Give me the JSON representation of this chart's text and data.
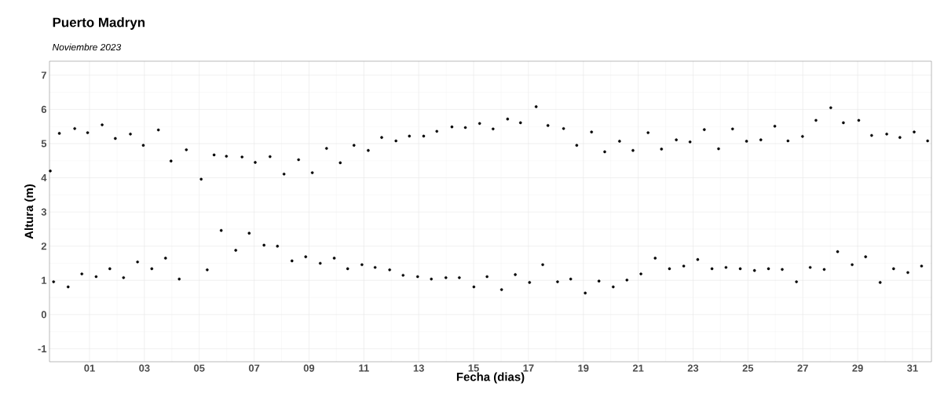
{
  "chart_data": {
    "type": "scatter",
    "title": "Puerto Madryn",
    "subtitle": "Noviembre 2023",
    "xlabel": "Fecha (dias)",
    "ylabel": "Altura (m)",
    "x": [
      -0.43,
      -0.31,
      -0.1,
      0.22,
      0.46,
      0.72,
      0.93,
      1.24,
      1.46,
      1.74,
      1.94,
      2.24,
      2.49,
      2.75,
      2.96,
      3.27,
      3.51,
      3.77,
      3.97,
      4.27,
      4.53,
      5.07,
      5.29,
      5.54,
      5.8,
      5.99,
      6.33,
      6.56,
      6.82,
      7.04,
      7.36,
      7.58,
      7.85,
      8.09,
      8.38,
      8.62,
      8.88,
      9.12,
      9.41,
      9.64,
      9.92,
      10.14,
      10.41,
      10.64,
      10.93,
      11.16,
      11.41,
      11.65,
      11.94,
      12.17,
      12.43,
      12.66,
      12.96,
      13.18,
      13.46,
      13.66,
      13.99,
      14.21,
      14.48,
      14.7,
      15.01,
      15.22,
      15.49,
      15.71,
      16.02,
      16.24,
      16.52,
      16.71,
      17.04,
      17.28,
      17.52,
      17.71,
      18.06,
      18.28,
      18.54,
      18.76,
      19.07,
      19.3,
      19.57,
      19.78,
      20.09,
      20.32,
      20.59,
      20.81,
      21.1,
      21.36,
      21.62,
      21.85,
      22.14,
      22.39,
      22.66,
      22.89,
      23.17,
      23.41,
      23.69,
      23.93,
      24.2,
      24.44,
      24.72,
      24.95,
      25.24,
      25.47,
      25.75,
      25.98,
      26.25,
      26.46,
      26.77,
      26.99,
      27.27,
      27.48,
      27.78,
      28.02,
      28.27,
      28.48,
      28.8,
      29.04,
      29.29,
      29.51,
      29.82,
      30.06,
      30.31,
      30.54,
      30.83,
      31.06,
      31.33,
      31.55
    ],
    "values": [
      4.2,
      0.96,
      5.3,
      0.81,
      5.44,
      1.19,
      5.32,
      1.11,
      5.55,
      1.34,
      5.15,
      1.08,
      5.28,
      1.54,
      4.95,
      1.34,
      5.4,
      1.65,
      4.49,
      1.04,
      4.82,
      3.96,
      1.31,
      4.67,
      2.46,
      4.63,
      1.88,
      4.61,
      2.38,
      4.45,
      2.03,
      4.62,
      2.0,
      4.11,
      1.57,
      4.53,
      1.69,
      4.15,
      1.5,
      4.86,
      1.65,
      4.44,
      1.34,
      4.95,
      1.46,
      4.8,
      1.38,
      5.18,
      1.31,
      5.08,
      1.15,
      5.22,
      1.11,
      5.22,
      1.04,
      5.36,
      1.08,
      5.49,
      1.08,
      5.47,
      0.81,
      5.59,
      1.11,
      5.43,
      0.73,
      5.72,
      1.17,
      5.61,
      0.94,
      6.08,
      1.46,
      5.53,
      0.96,
      5.44,
      1.04,
      4.95,
      0.63,
      5.34,
      0.98,
      4.76,
      0.81,
      5.07,
      1.01,
      4.8,
      1.19,
      5.32,
      1.65,
      4.84,
      1.34,
      5.11,
      1.42,
      5.05,
      1.61,
      5.41,
      1.34,
      4.85,
      1.38,
      5.43,
      1.34,
      5.07,
      1.29,
      5.11,
      1.34,
      5.51,
      1.32,
      5.08,
      0.96,
      5.21,
      1.38,
      5.68,
      1.32,
      6.05,
      1.84,
      5.61,
      1.46,
      5.68,
      1.69,
      5.24,
      0.94,
      5.28,
      1.34,
      5.18,
      1.23,
      5.34,
      1.42,
      5.08
    ],
    "color": "#000000",
    "marker": "circle",
    "xlim": [
      -0.46,
      31.69
    ],
    "ylim": [
      -1.38,
      7.41
    ],
    "xticks": [
      {
        "value": 1,
        "label": "01"
      },
      {
        "value": 3,
        "label": "03"
      },
      {
        "value": 5,
        "label": "05"
      },
      {
        "value": 7,
        "label": "07"
      },
      {
        "value": 9,
        "label": "09"
      },
      {
        "value": 11,
        "label": "11"
      },
      {
        "value": 13,
        "label": "13"
      },
      {
        "value": 15,
        "label": "15"
      },
      {
        "value": 17,
        "label": "17"
      },
      {
        "value": 19,
        "label": "19"
      },
      {
        "value": 21,
        "label": "21"
      },
      {
        "value": 23,
        "label": "23"
      },
      {
        "value": 25,
        "label": "25"
      },
      {
        "value": 27,
        "label": "27"
      },
      {
        "value": 29,
        "label": "29"
      },
      {
        "value": 31,
        "label": "31"
      }
    ],
    "yticks": [
      -1,
      0,
      1,
      2,
      3,
      4,
      5,
      6,
      7
    ],
    "grid": true
  }
}
